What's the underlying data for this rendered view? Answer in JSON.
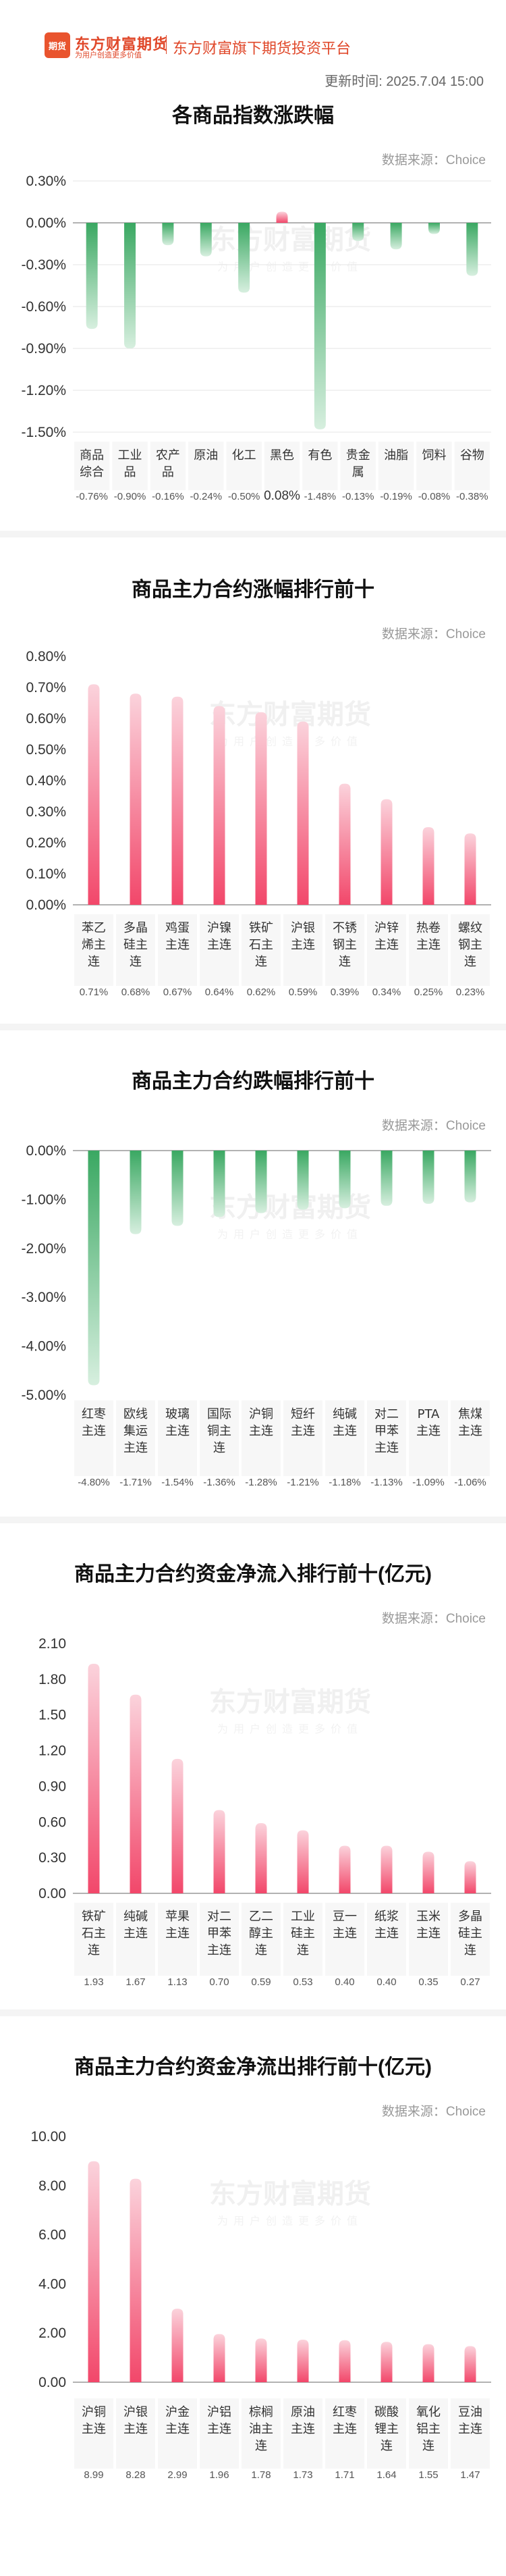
{
  "brand": {
    "logo_text": "期货",
    "name": "东方财富期货",
    "slogan": "为用户创造更多价值",
    "platform": "东方财富旗下期货投资平台"
  },
  "update": {
    "label": "更新时间:",
    "value": "2025.7.04 15:00"
  },
  "colors": {
    "red": "#f2476a",
    "red_light": "#fbd3dc",
    "green": "#3aa862",
    "green_light": "#d7efdf",
    "grid": "#e6e6e6",
    "axis_zero": "#999999"
  },
  "watermark": {
    "line1": "东方财富期货",
    "line2": "为用户创造更多价值"
  },
  "chart_data": [
    {
      "id": "index",
      "type": "bar",
      "title": "各商品指数涨跌幅",
      "source": "数据来源：Choice",
      "ylim": [
        -1.5,
        0.3
      ],
      "yticks": [
        "0.30%",
        "0.00%",
        "-0.30%",
        "-0.60%",
        "-0.90%",
        "-1.20%",
        "-1.50%"
      ],
      "categories": [
        "商品综合",
        "工业品",
        "农产品",
        "原油",
        "化工",
        "黑色",
        "有色",
        "贵金属",
        "油脂",
        "饲料",
        "谷物"
      ],
      "category_lines": [
        [
          "商品",
          "综合"
        ],
        [
          "工业",
          "品"
        ],
        [
          "农产",
          "品"
        ],
        [
          "原油"
        ],
        [
          "化工"
        ],
        [
          "黑色"
        ],
        [
          "有色"
        ],
        [
          "贵金",
          "属"
        ],
        [
          "油脂"
        ],
        [
          "饲料"
        ],
        [
          "谷物"
        ]
      ],
      "values": [
        -0.76,
        -0.9,
        -0.16,
        -0.24,
        -0.5,
        0.08,
        -1.48,
        -0.13,
        -0.19,
        -0.08,
        -0.38
      ],
      "value_labels": [
        "-0.76%",
        "-0.90%",
        "-0.16%",
        "-0.24%",
        "-0.50%",
        "0.08%",
        "-1.48%",
        "-0.13%",
        "-0.19%",
        "-0.08%",
        "-0.38%"
      ],
      "grid": true
    },
    {
      "id": "gain",
      "type": "bar",
      "title": "商品主力合约涨幅排行前十",
      "source": "数据来源：Choice",
      "ylim": [
        0,
        0.8
      ],
      "yticks": [
        "0.80%",
        "0.70%",
        "0.60%",
        "0.50%",
        "0.40%",
        "0.30%",
        "0.20%",
        "0.10%",
        "0.00%"
      ],
      "categories": [
        "苯乙烯主连",
        "多晶硅主连",
        "鸡蛋主连",
        "沪镍主连",
        "铁矿石主连",
        "沪银主连",
        "不锈钢主连",
        "沪锌主连",
        "热卷主连",
        "螺纹钢主连"
      ],
      "category_lines": [
        [
          "苯乙",
          "烯主",
          "连"
        ],
        [
          "多晶",
          "硅主",
          "连"
        ],
        [
          "鸡蛋",
          "主连"
        ],
        [
          "沪镍",
          "主连"
        ],
        [
          "铁矿",
          "石主",
          "连"
        ],
        [
          "沪银",
          "主连"
        ],
        [
          "不锈",
          "钢主",
          "连"
        ],
        [
          "沪锌",
          "主连"
        ],
        [
          "热卷",
          "主连"
        ],
        [
          "螺纹",
          "钢主",
          "连"
        ]
      ],
      "values": [
        0.71,
        0.68,
        0.67,
        0.64,
        0.62,
        0.59,
        0.39,
        0.34,
        0.25,
        0.23
      ],
      "value_labels": [
        "0.71%",
        "0.68%",
        "0.67%",
        "0.64%",
        "0.62%",
        "0.59%",
        "0.39%",
        "0.34%",
        "0.25%",
        "0.23%"
      ],
      "grid": false
    },
    {
      "id": "loss",
      "type": "bar",
      "title": "商品主力合约跌幅排行前十",
      "source": "数据来源：Choice",
      "ylim": [
        -5.0,
        0
      ],
      "yticks": [
        "0.00%",
        "-1.00%",
        "-2.00%",
        "-3.00%",
        "-4.00%",
        "-5.00%"
      ],
      "categories": [
        "红枣主连",
        "欧线集运主连",
        "玻璃主连",
        "国际铜主连",
        "沪铜主连",
        "短纤主连",
        "纯碱主连",
        "对二甲苯主连",
        "PTA主连",
        "焦煤主连"
      ],
      "category_lines": [
        [
          "红枣",
          "主连"
        ],
        [
          "欧线",
          "集运",
          "主连"
        ],
        [
          "玻璃",
          "主连"
        ],
        [
          "国际",
          "铜主",
          "连"
        ],
        [
          "沪铜",
          "主连"
        ],
        [
          "短纤",
          "主连"
        ],
        [
          "纯碱",
          "主连"
        ],
        [
          "对二",
          "甲苯",
          "主连"
        ],
        [
          "PTA",
          "主连"
        ],
        [
          "焦煤",
          "主连"
        ]
      ],
      "values": [
        -4.8,
        -1.71,
        -1.54,
        -1.36,
        -1.28,
        -1.21,
        -1.18,
        -1.13,
        -1.09,
        -1.06
      ],
      "value_labels": [
        "-4.80%",
        "-1.71%",
        "-1.54%",
        "-1.36%",
        "-1.28%",
        "-1.21%",
        "-1.18%",
        "-1.13%",
        "-1.09%",
        "-1.06%"
      ],
      "grid": false
    },
    {
      "id": "inflow",
      "type": "bar",
      "title": "商品主力合约资金净流入排行前十(亿元)",
      "source": "数据来源：Choice",
      "ylim": [
        0,
        2.1
      ],
      "yticks": [
        "2.10",
        "1.80",
        "1.50",
        "1.20",
        "0.90",
        "0.60",
        "0.30",
        "0.00"
      ],
      "categories": [
        "铁矿石主连",
        "纯碱主连",
        "苹果主连",
        "对二甲苯主连",
        "乙二醇主连",
        "工业硅主连",
        "豆一主连",
        "纸浆主连",
        "玉米主连",
        "多晶硅主连"
      ],
      "category_lines": [
        [
          "铁矿",
          "石主",
          "连"
        ],
        [
          "纯碱",
          "主连"
        ],
        [
          "苹果",
          "主连"
        ],
        [
          "对二",
          "甲苯",
          "主连"
        ],
        [
          "乙二",
          "醇主",
          "连"
        ],
        [
          "工业",
          "硅主",
          "连"
        ],
        [
          "豆一",
          "主连"
        ],
        [
          "纸浆",
          "主连"
        ],
        [
          "玉米",
          "主连"
        ],
        [
          "多晶",
          "硅主",
          "连"
        ]
      ],
      "values": [
        1.93,
        1.67,
        1.13,
        0.7,
        0.59,
        0.53,
        0.4,
        0.4,
        0.35,
        0.27
      ],
      "value_labels": [
        "1.93",
        "1.67",
        "1.13",
        "0.70",
        "0.59",
        "0.53",
        "0.40",
        "0.40",
        "0.35",
        "0.27"
      ],
      "grid": false
    },
    {
      "id": "outflow",
      "type": "bar",
      "title": "商品主力合约资金净流出排行前十(亿元)",
      "source": "数据来源：Choice",
      "ylim": [
        0,
        10
      ],
      "yticks": [
        "10.00",
        "8.00",
        "6.00",
        "4.00",
        "2.00",
        "0.00"
      ],
      "categories": [
        "沪铜主连",
        "沪银主连",
        "沪金主连",
        "沪铝主连",
        "棕榈油主连",
        "原油主连",
        "红枣主连",
        "碳酸锂主连",
        "氧化铝主连",
        "豆油主连"
      ],
      "category_lines": [
        [
          "沪铜",
          "主连"
        ],
        [
          "沪银",
          "主连"
        ],
        [
          "沪金",
          "主连"
        ],
        [
          "沪铝",
          "主连"
        ],
        [
          "棕榈",
          "油主",
          "连"
        ],
        [
          "原油",
          "主连"
        ],
        [
          "红枣",
          "主连"
        ],
        [
          "碳酸",
          "锂主",
          "连"
        ],
        [
          "氧化",
          "铝主",
          "连"
        ],
        [
          "豆油",
          "主连"
        ]
      ],
      "values": [
        8.99,
        8.28,
        2.99,
        1.96,
        1.78,
        1.73,
        1.71,
        1.64,
        1.55,
        1.47
      ],
      "value_labels": [
        "8.99",
        "8.28",
        "2.99",
        "1.96",
        "1.78",
        "1.73",
        "1.71",
        "1.64",
        "1.55",
        "1.47"
      ],
      "grid": false
    }
  ]
}
